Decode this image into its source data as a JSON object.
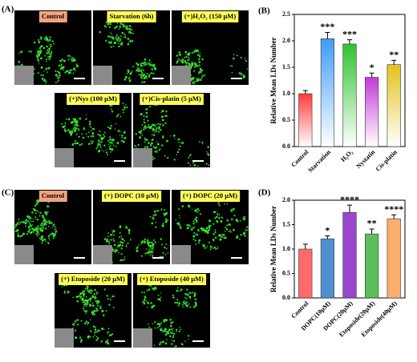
{
  "panels": [
    {
      "letter": "(A)",
      "images": [
        "Control",
        "Starvation (6h)",
        "(+)H₂O₂ (150 μM)",
        "(+)Nys (100 μM)",
        "(+)Cis-platin (5 μM)"
      ]
    },
    {
      "letter": "(C)",
      "images": [
        "Control",
        "(+) DOPC (10 μM)",
        "(+) DOPC (20 μM)",
        "(+) Etoposide (20 μM)",
        "(+) Etoposide (40 μM)"
      ]
    }
  ],
  "chart_data": [
    {
      "type": "bar",
      "letter": "(B)",
      "y_label": "Relative Mean LDs Number",
      "categories": [
        "Control",
        "Starvation",
        "H₂O₂",
        "Nystatin",
        "Cis-platin"
      ],
      "values": [
        1.0,
        2.04,
        1.94,
        1.31,
        1.55
      ],
      "errors": [
        0.06,
        0.12,
        0.08,
        0.08,
        0.08
      ],
      "significance": [
        null,
        "***",
        "***",
        "*",
        "**"
      ],
      "colors": [
        "#ff3b3b",
        "#3d9cf5",
        "#2ec22e",
        "#c43ad6",
        "#e3c21a"
      ],
      "gradient": true,
      "ylim": [
        0,
        2.5
      ],
      "yticks": [
        {
          "value": 0,
          "label": "0.0"
        },
        0.5,
        {
          "value": 1,
          "label": "1.0"
        },
        1.5,
        {
          "value": 2,
          "label": "2.0"
        },
        2.5
      ]
    },
    {
      "type": "bar",
      "letter": "(D)",
      "y_label": "Relative Mean LDs Number",
      "categories": [
        "Control",
        "DOPC(10μM)",
        "DOPC(20μM)",
        "Etoposide(20μM)",
        "Etoposide(40μM)"
      ],
      "values": [
        1.0,
        1.21,
        1.75,
        1.31,
        1.62
      ],
      "errors": [
        0.1,
        0.06,
        0.15,
        0.1,
        0.08
      ],
      "significance": [
        null,
        "*",
        "****",
        "**",
        "****"
      ],
      "colors": [
        "#ff6b6b",
        "#4f8fcf",
        "#9a46cc",
        "#5bbf5b",
        "#ffae6e"
      ],
      "gradient": false,
      "ylim": [
        0,
        2
      ],
      "yticks": [
        {
          "value": 0,
          "label": "0.0"
        },
        0.5,
        {
          "value": 1,
          "label": "1.0"
        },
        1.5,
        {
          "value": 2,
          "label": "2.0"
        }
      ]
    }
  ]
}
